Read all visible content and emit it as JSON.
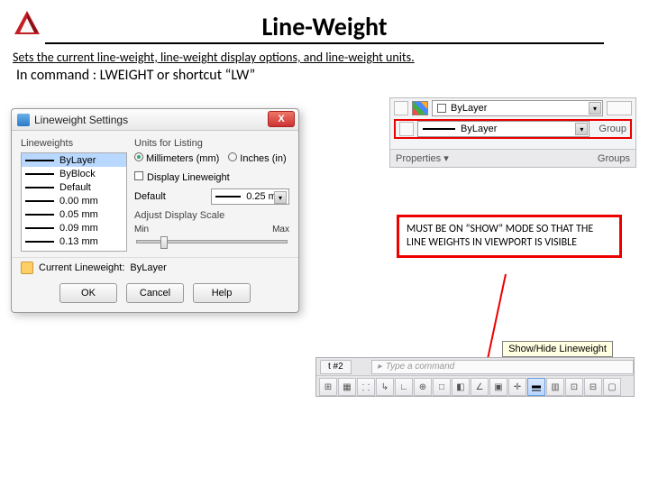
{
  "page": {
    "title": "Line-Weight",
    "subtitle": "Sets the current line-weight, line-weight display options, and line-weight units.",
    "command_text": "In command : LWEIGHT  or  shortcut “LW”"
  },
  "dialog": {
    "title": "Lineweight Settings",
    "close_label": "X",
    "left_section": "Lineweights",
    "right_section": "Units for Listing",
    "radio_mm": "Millimeters (mm)",
    "radio_in": "Inches (in)",
    "display_lw": "Display Lineweight",
    "default_label": "Default",
    "default_value": "0.25 mm",
    "adjust_label": "Adjust Display Scale",
    "scale_min": "Min",
    "scale_max": "Max",
    "current_label": "Current Lineweight:",
    "current_value": "ByLayer",
    "items": [
      {
        "label": "ByLayer",
        "selected": true
      },
      {
        "label": "ByBlock",
        "selected": false
      },
      {
        "label": "Default",
        "selected": false
      },
      {
        "label": "0.00 mm",
        "selected": false
      },
      {
        "label": "0.05 mm",
        "selected": false
      },
      {
        "label": "0.09 mm",
        "selected": false
      },
      {
        "label": "0.13 mm",
        "selected": false
      }
    ],
    "buttons": {
      "ok": "OK",
      "cancel": "Cancel",
      "help": "Help"
    }
  },
  "ribbon": {
    "bylayer1": "ByLayer",
    "bylayer2": "ByLayer",
    "prop_label": "Properties",
    "group_label": "Group",
    "groups_label": "Groups"
  },
  "callout": {
    "text": "MUST BE ON “SHOW” MODE SO THAT THE LINE WEIGHTS IN VIEWPORT IS VISIBLE"
  },
  "tooltip": {
    "text": "Show/Hide Lineweight"
  },
  "statusbar": {
    "tab": "t #2",
    "cmd_placeholder": "Type a command"
  },
  "colors": {
    "accent_red": "#e00000"
  }
}
